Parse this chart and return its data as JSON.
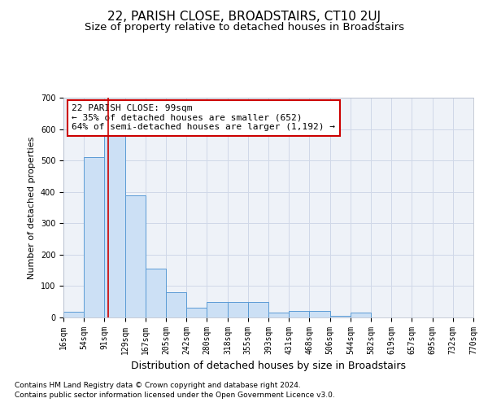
{
  "title": "22, PARISH CLOSE, BROADSTAIRS, CT10 2UJ",
  "subtitle": "Size of property relative to detached houses in Broadstairs",
  "xlabel": "Distribution of detached houses by size in Broadstairs",
  "ylabel": "Number of detached properties",
  "bar_edges": [
    16,
    54,
    91,
    129,
    167,
    205,
    242,
    280,
    318,
    355,
    393,
    431,
    468,
    506,
    544,
    582,
    619,
    657,
    695,
    732,
    770
  ],
  "bar_heights": [
    18,
    510,
    580,
    390,
    155,
    80,
    30,
    50,
    50,
    50,
    15,
    20,
    20,
    5,
    15,
    0,
    0,
    0,
    0,
    0
  ],
  "bar_color": "#cce0f5",
  "bar_edge_color": "#5b9bd5",
  "property_size": 99,
  "annotation_box_color": "#ffffff",
  "annotation_border_color": "#cc0000",
  "annotation_text_line1": "22 PARISH CLOSE: 99sqm",
  "annotation_text_line2": "← 35% of detached houses are smaller (652)",
  "annotation_text_line3": "64% of semi-detached houses are larger (1,192) →",
  "vline_color": "#cc0000",
  "grid_color": "#d0d8e8",
  "background_color": "#eef2f8",
  "footnote1": "Contains HM Land Registry data © Crown copyright and database right 2024.",
  "footnote2": "Contains public sector information licensed under the Open Government Licence v3.0.",
  "ylim": [
    0,
    700
  ],
  "yticks": [
    0,
    100,
    200,
    300,
    400,
    500,
    600,
    700
  ],
  "title_fontsize": 11,
  "subtitle_fontsize": 9.5,
  "xlabel_fontsize": 9,
  "ylabel_fontsize": 8,
  "tick_fontsize": 7,
  "annotation_fontsize": 8,
  "footnote_fontsize": 6.5
}
